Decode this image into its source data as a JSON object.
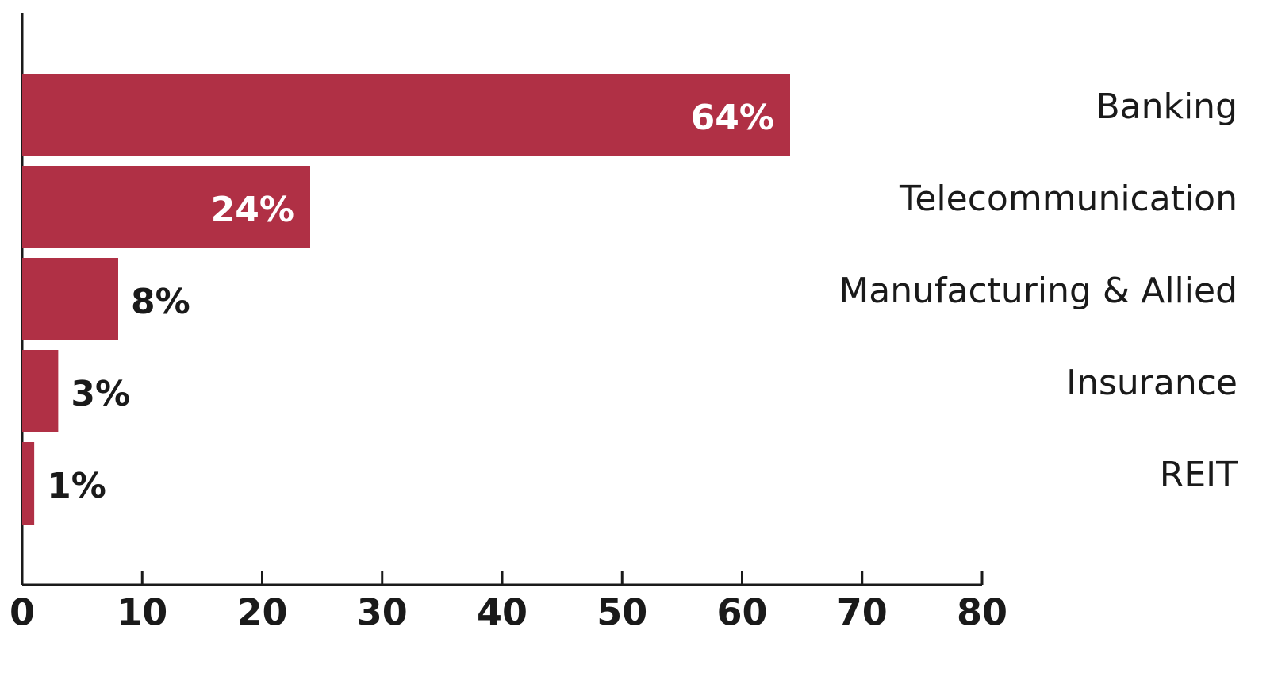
{
  "chart_data": {
    "type": "bar",
    "orientation": "horizontal",
    "categories": [
      "Banking",
      "Telecommunication",
      "Manufacturing & Allied",
      "Insurance",
      "REIT"
    ],
    "values": [
      64,
      24,
      8,
      3,
      1
    ],
    "value_labels": [
      "64%",
      "24%",
      "8%",
      "3%",
      "1%"
    ],
    "color": "#b03045",
    "xlim": [
      0,
      80
    ],
    "xticks": [
      0,
      10,
      20,
      30,
      40,
      50,
      60,
      70,
      80
    ]
  }
}
